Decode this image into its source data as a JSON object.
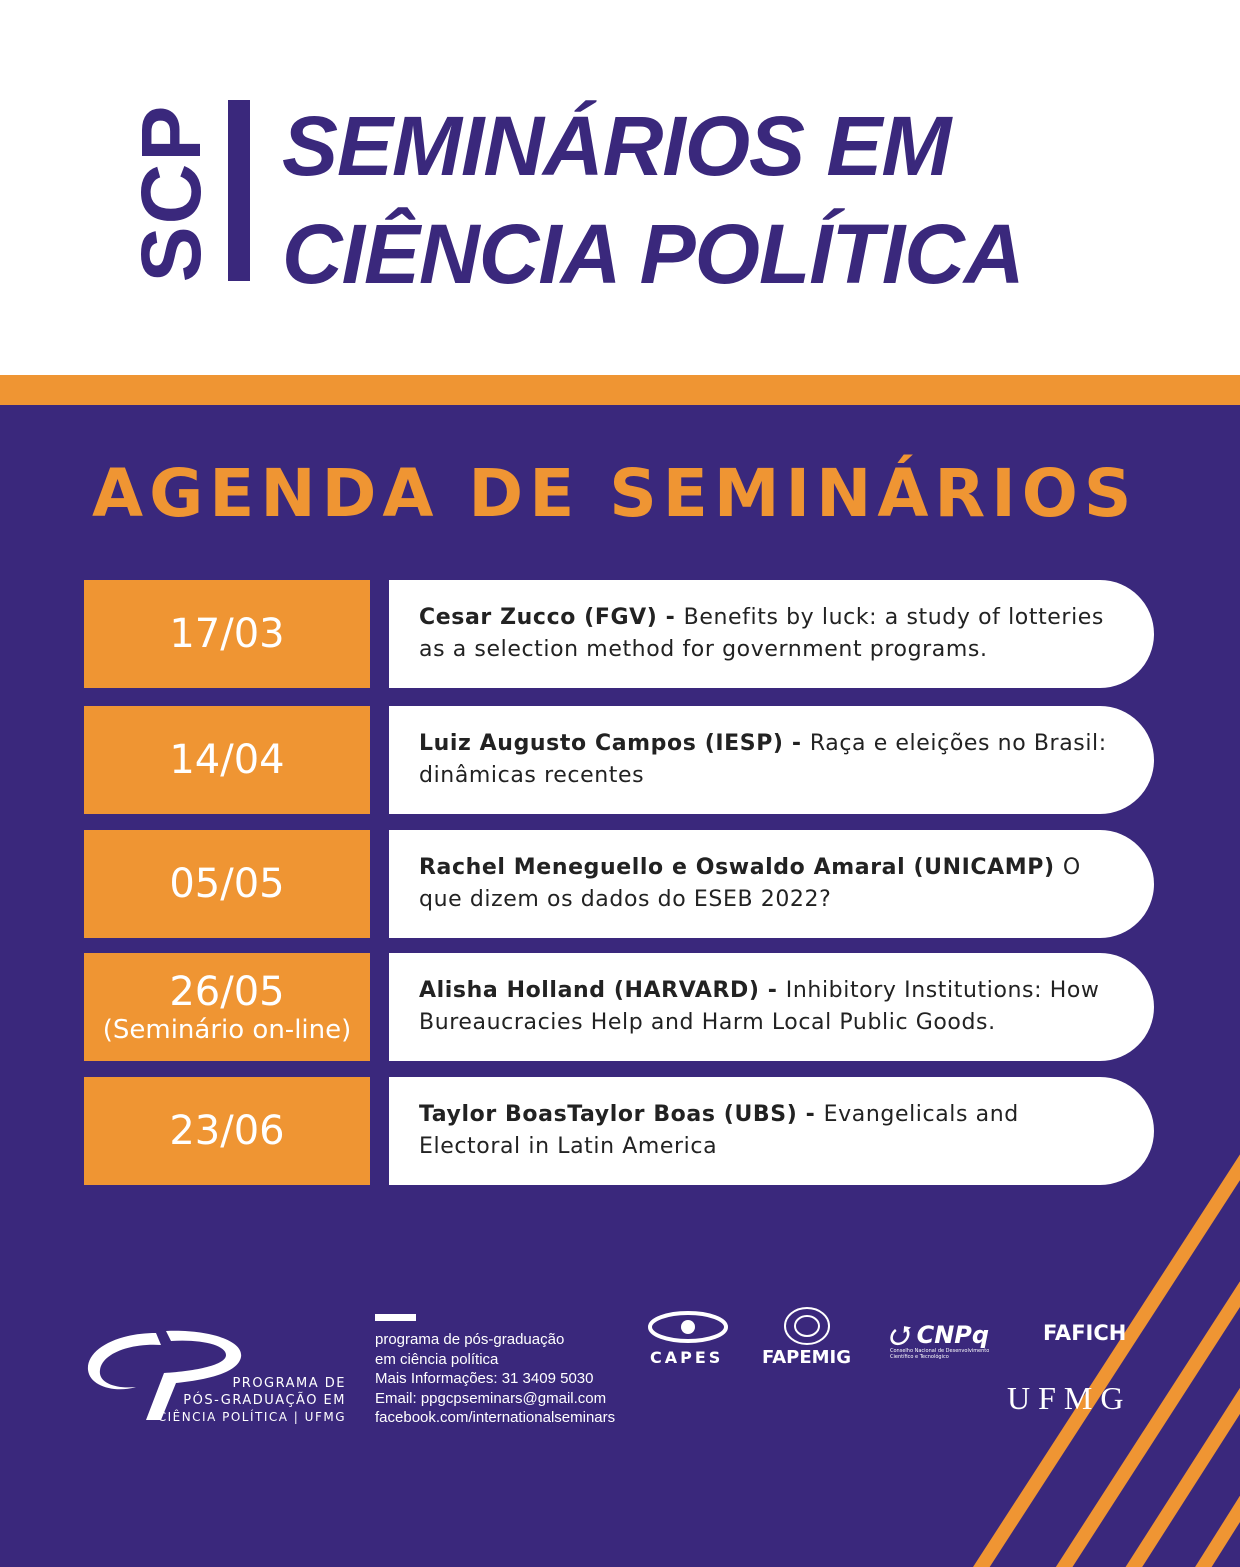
{
  "header": {
    "logo": "SCP",
    "title_line1": "SEMINÁRIOS EM",
    "title_line2": "CIÊNCIA POLÍTICA"
  },
  "agenda_title": "AGENDA DE SEMINÁRIOS",
  "colors": {
    "purple": "#3a287c",
    "orange": "#ef9533",
    "white": "#ffffff"
  },
  "seminars": [
    {
      "date": "17/03",
      "note": "",
      "speaker": "Cesar Zucco (FGV)",
      "sep": " - ",
      "topic": "Benefits by luck: a study of lotteries as a selection method for government programs."
    },
    {
      "date": "14/04",
      "note": "",
      "speaker": "Luiz Augusto Campos (IESP)",
      "sep": " - ",
      "topic": "Raça e eleições no Brasil: dinâmicas recentes"
    },
    {
      "date": "05/05",
      "note": "",
      "speaker": "Rachel Meneguello e Oswaldo Amaral (UNICAMP)",
      "sep": " ",
      "topic": "O que dizem os dados do ESEB 2022?"
    },
    {
      "date": "26/05",
      "note": "(Seminário on-line)",
      "speaker": "Alisha Holland (HARVARD)",
      "sep": " - ",
      "topic": "Inhibitory Institutions: How Bureaucracies Help and Harm Local Public Goods."
    },
    {
      "date": "23/06",
      "note": "",
      "speaker": "Taylor BoasTaylor Boas (UBS)",
      "sep": " - ",
      "topic": "Evangelicals and Electoral in Latin America"
    }
  ],
  "footer": {
    "program_logo_text": [
      "PROGRAMA DE",
      "PÓS-GRADUAÇÃO EM",
      "CIÊNCIA POLÍTICA | UFMG"
    ],
    "info": [
      "programa de pós-graduação",
      "em ciência política",
      "Mais Informações: 31 3409 5030",
      "Email: ppgcpseminars@gmail.com",
      "facebook.com/internationalseminars"
    ],
    "sponsors": {
      "capes": "CAPES",
      "fapemig": "FAPEMIG",
      "cnpq": "CNPq",
      "cnpq_sub": "Conselho Nacional de Desenvolvimento Científico e Tecnológico",
      "fafich": "FAFICH",
      "ufmg": "UFMG"
    }
  }
}
